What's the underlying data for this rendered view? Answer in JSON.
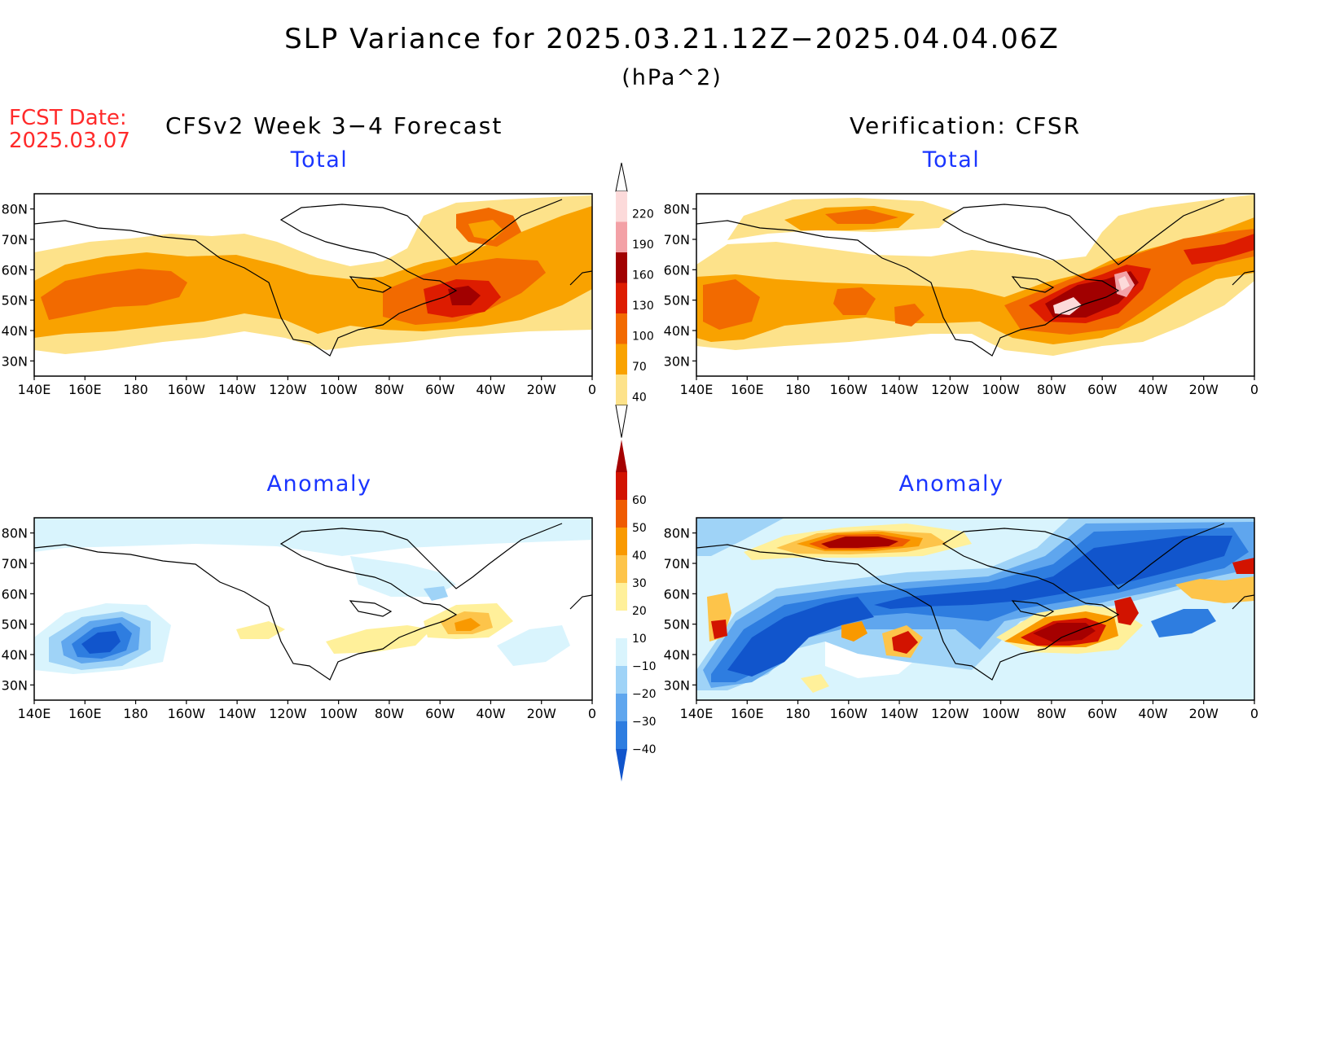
{
  "header": {
    "title": "SLP Variance for 2025.03.21.12Z−2025.04.04.06Z",
    "units": "(hPa^2)",
    "fcst_label": "FCST Date:",
    "fcst_date": "2025.03.07"
  },
  "columns": {
    "left": "CFSv2 Week 3−4 Forecast",
    "right": "Verification: CFSR"
  },
  "panel_titles": {
    "forecast_total": "Total",
    "verification_total": "Total",
    "forecast_anomaly": "Anomaly",
    "verification_anomaly": "Anomaly"
  },
  "axes": {
    "lat_labels": [
      "80N",
      "70N",
      "60N",
      "50N",
      "40N",
      "30N"
    ],
    "lat_values": [
      80,
      70,
      60,
      50,
      40,
      30
    ],
    "lon_labels": [
      "140E",
      "160E",
      "180",
      "160W",
      "140W",
      "120W",
      "100W",
      "80W",
      "60W",
      "40W",
      "20W",
      "0"
    ],
    "lon_range": [
      140,
      360
    ],
    "lat_range": [
      25,
      85
    ]
  },
  "colorbars": {
    "total": {
      "levels": [
        "40",
        "70",
        "100",
        "130",
        "160",
        "190",
        "220"
      ],
      "colors": [
        "#fde28a",
        "#f9a200",
        "#f26a00",
        "#dd1c00",
        "#a10000",
        "#f3a1a6",
        "#fcdada"
      ]
    },
    "anomaly": {
      "levels": [
        "−40",
        "−30",
        "−20",
        "−10",
        "10",
        "20",
        "30",
        "40",
        "50",
        "60"
      ],
      "colors": [
        "#1155cc",
        "#2e7de0",
        "#5fa6ee",
        "#9fd3f7",
        "#d9f4fd",
        "#ffffff",
        "#fff09a",
        "#fdc44a",
        "#f99900",
        "#ef5b00",
        "#d21300",
        "#a50000"
      ]
    }
  }
}
